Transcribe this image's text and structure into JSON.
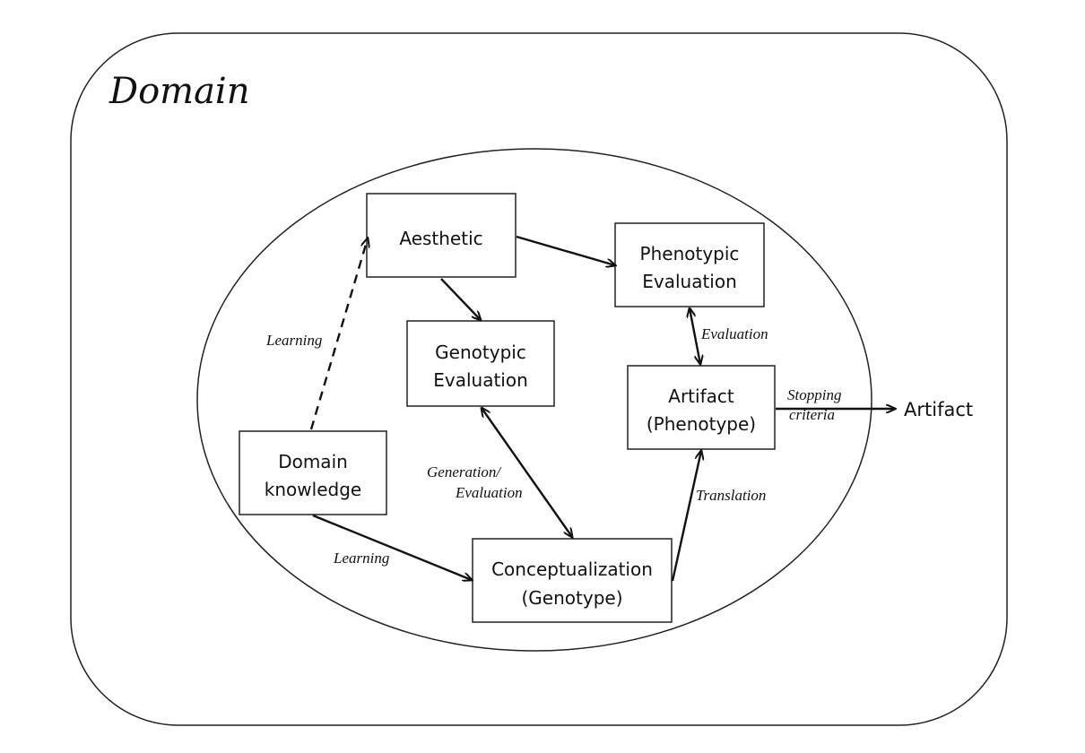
{
  "domain_title": "Domain",
  "nodes": {
    "aesthetic": {
      "lines": [
        "Aesthetic"
      ]
    },
    "phenotypic_evaluation": {
      "lines": [
        "Phenotypic",
        "Evaluation"
      ]
    },
    "genotypic_evaluation": {
      "lines": [
        "Genotypic",
        "Evaluation"
      ]
    },
    "artifact_phenotype": {
      "lines": [
        "Artifact",
        "(Phenotype)"
      ]
    },
    "domain_knowledge": {
      "lines": [
        "Domain",
        "knowledge"
      ]
    },
    "conceptualization": {
      "lines": [
        "Conceptualization",
        "(Genotype)"
      ]
    }
  },
  "output": "Artifact",
  "edge_labels": {
    "learning_top": "Learning",
    "learning_bottom": "Learning",
    "evaluation": "Evaluation",
    "generation_evaluation": [
      "Generation/",
      "Evaluation"
    ],
    "translation": "Translation",
    "stopping_criteria": [
      "Stopping",
      "criteria"
    ]
  }
}
